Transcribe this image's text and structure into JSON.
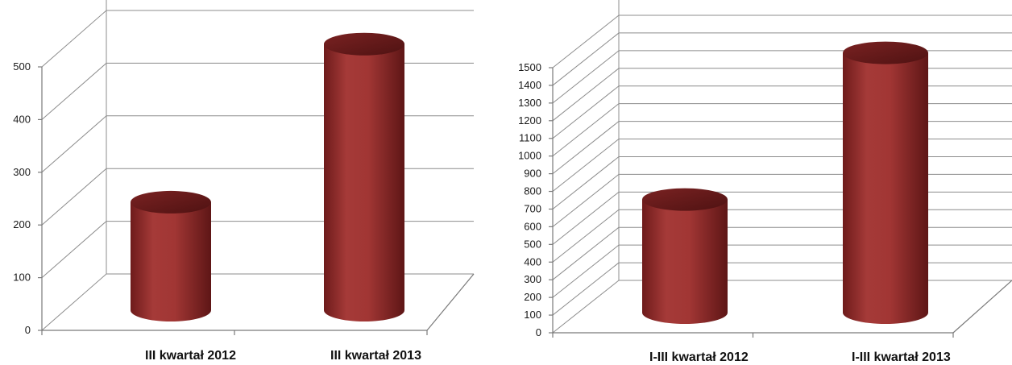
{
  "chart_data": [
    {
      "type": "bar",
      "style": "3d-cylinder",
      "categories": [
        "III kwartał 2012",
        "III kwartał 2013"
      ],
      "values": [
        205,
        505
      ],
      "ylim": [
        0,
        500
      ],
      "yticks": [
        0,
        100,
        200,
        300,
        400,
        500
      ],
      "grid": true,
      "legend": "none",
      "bar_color": "#9b2f2e"
    },
    {
      "type": "bar",
      "style": "3d-cylinder",
      "categories": [
        "I-III kwartał 2012",
        "I-III kwartał 2013"
      ],
      "values": [
        640,
        1470
      ],
      "ylim": [
        0,
        1500
      ],
      "yticks": [
        0,
        100,
        200,
        300,
        400,
        500,
        600,
        700,
        800,
        900,
        1000,
        1100,
        1200,
        1300,
        1400,
        1500
      ],
      "grid": true,
      "legend": "none",
      "bar_color": "#9b2f2e"
    }
  ]
}
